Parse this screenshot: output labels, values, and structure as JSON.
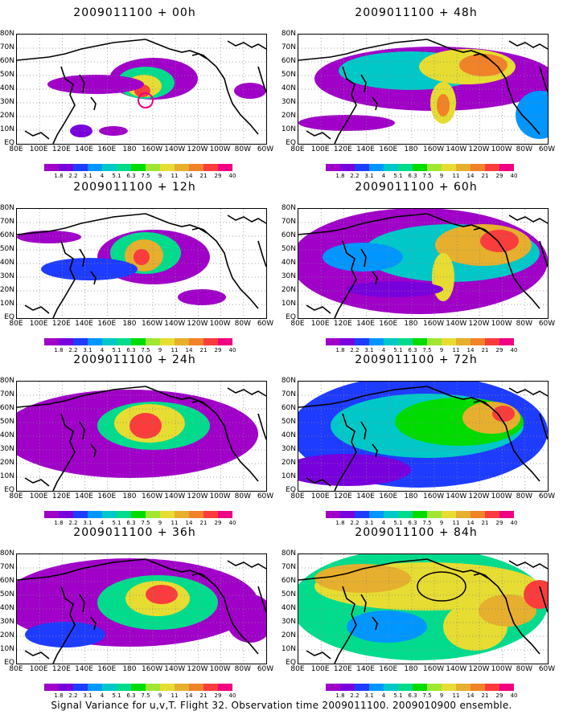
{
  "figure": {
    "caption": "Signal Variance for u,v,T. Flight 32. Observation time 2009011100. 2009010900 ensemble."
  },
  "axes": {
    "lat_labels": [
      "80N",
      "70N",
      "60N",
      "50N",
      "40N",
      "30N",
      "20N",
      "10N",
      "EQ"
    ],
    "lon_labels": [
      "80E",
      "100E",
      "120E",
      "140E",
      "160E",
      "180",
      "160W",
      "140W",
      "120W",
      "100W",
      "80W",
      "60W"
    ]
  },
  "colorbar": {
    "labels": [
      "1.8",
      "2.2",
      "3.1",
      "4",
      "5.1",
      "6.3",
      "7.5",
      "9",
      "11",
      "14",
      "21",
      "29",
      "40"
    ],
    "colors": [
      "#a000c8",
      "#7800dc",
      "#1e3cff",
      "#0096ff",
      "#00c8c8",
      "#00dc8c",
      "#00dc00",
      "#a0e632",
      "#e6dc32",
      "#e6af2d",
      "#f08228",
      "#fa3c3c",
      "#f00082"
    ]
  },
  "panels": [
    {
      "title": "2009011100 + 00h"
    },
    {
      "title": "2009011100 + 48h"
    },
    {
      "title": "2009011100 + 12h"
    },
    {
      "title": "2009011100 + 60h"
    },
    {
      "title": "2009011100 + 24h"
    },
    {
      "title": "2009011100 + 72h"
    },
    {
      "title": "2009011100 + 36h"
    },
    {
      "title": "2009011100 + 84h"
    }
  ]
}
